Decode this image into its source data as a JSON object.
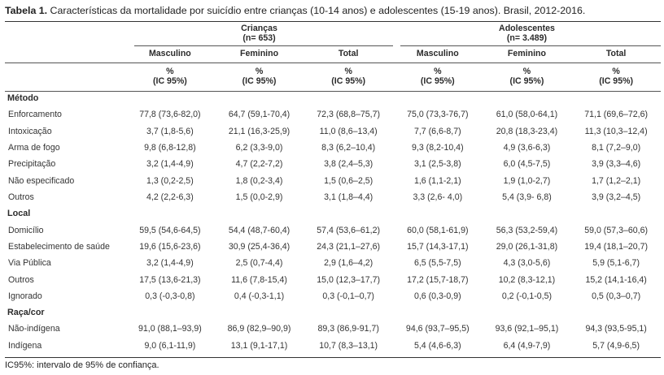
{
  "title": {
    "bold": "Tabela 1.",
    "rest": " Características da mortalidade por suicídio entre crianças (10-14 anos) e adolescentes (15-19 anos). Brasil, 2012-2016."
  },
  "groups": [
    {
      "name": "Crianças",
      "n": "(n= 653)"
    },
    {
      "name": "Adolescentes",
      "n": "(n= 3.489)"
    }
  ],
  "sex_headers": [
    "Masculino",
    "Feminino",
    "Total",
    "Masculino",
    "Feminino",
    "Total"
  ],
  "unit_line1": "%",
  "unit_line2": "(IC 95%)",
  "sections": [
    {
      "name": "Método",
      "rows": [
        {
          "label": "Enforcamento",
          "values": [
            "77,8 (73,6-82,0)",
            "64,7 (59,1-70,4)",
            "72,3 (68,8–75,7)",
            "75,0 (73,3-76,7)",
            "61,0 (58,0-64,1)",
            "71,1 (69,6–72,6)"
          ]
        },
        {
          "label": "Intoxicação",
          "values": [
            "3,7 (1,8-5,6)",
            "21,1 (16,3-25,9)",
            "11,0 (8,6–13,4)",
            "7,7 (6,6-8,7)",
            "20,8 (18,3-23,4)",
            "11,3 (10,3–12,4)"
          ]
        },
        {
          "label": "Arma de fogo",
          "values": [
            "9,8 (6,8-12,8)",
            "6,2 (3,3-9,0)",
            "8,3 (6,2–10,4)",
            "9,3 (8,2-10,4)",
            "4,9 (3,6-6,3)",
            "8,1 (7,2–9,0)"
          ]
        },
        {
          "label": "Precipitação",
          "values": [
            "3,2 (1,4-4,9)",
            "4,7 (2,2-7,2)",
            "3,8 (2,4–5,3)",
            "3,1 (2,5-3,8)",
            "6,0 (4,5-7,5)",
            "3,9 (3,3–4,6)"
          ]
        },
        {
          "label": "Não especificado",
          "values": [
            "1,3 (0,2-2,5)",
            "1,8 (0,2-3,4)",
            "1,5 (0,6–2,5)",
            "1,6 (1,1-2,1)",
            "1,9 (1,0-2,7)",
            "1,7 (1,2–2,1)"
          ]
        },
        {
          "label": "Outros",
          "values": [
            "4,2 (2,2-6,3)",
            "1,5 (0,0-2,9)",
            "3,1 (1,8–4,4)",
            "3,3 (2,6- 4,0)",
            "5,4 (3,9- 6,8)",
            "3,9 (3,2–4,5)"
          ]
        }
      ]
    },
    {
      "name": "Local",
      "rows": [
        {
          "label": "Domicílio",
          "values": [
            "59,5 (54,6-64,5)",
            "54,4 (48,7-60,4)",
            "57,4 (53,6–61,2)",
            "60,0 (58,1-61,9)",
            "56,3 (53,2-59,4)",
            "59,0 (57,3–60,6)"
          ]
        },
        {
          "label": "Estabelecimento de saúde",
          "values": [
            "19,6 (15,6-23,6)",
            "30,9 (25,4-36,4)",
            "24,3 (21,1–27,6)",
            "15,7 (14,3-17,1)",
            "29,0 (26,1-31,8)",
            "19,4 (18,1–20,7)"
          ]
        },
        {
          "label": "Via Pública",
          "values": [
            "3,2 (1,4-4,9)",
            "2,5 (0,7-4,4)",
            "2,9 (1,6–4,2)",
            "6,5 (5,5-7,5)",
            "4,3 (3,0-5,6)",
            "5,9 (5,1-6,7)"
          ]
        },
        {
          "label": "Outros",
          "values": [
            "17,5 (13,6-21,3)",
            "11,6 (7,8-15,4)",
            "15,0 (12,3–17,7)",
            "17,2 (15,7-18,7)",
            "10,2 (8,3-12,1)",
            "15,2 (14,1-16,4)"
          ]
        },
        {
          "label": "Ignorado",
          "values": [
            "0,3 (-0,3-0,8)",
            "0,4 (-0,3-1,1)",
            "0,3 (-0,1–0,7)",
            "0,6 (0,3-0,9)",
            "0,2 (-0,1-0,5)",
            "0,5 (0,3–0,7)"
          ]
        }
      ]
    },
    {
      "name": "Raça/cor",
      "rows": [
        {
          "label": "Não-indígena",
          "values": [
            "91,0 (88,1–93,9)",
            "86,9 (82,9–90,9)",
            "89,3 (86,9-91,7)",
            "94,6 (93,7–95,5)",
            "93,6 (92,1–95,1)",
            "94,3 (93,5-95,1)"
          ]
        },
        {
          "label": "Indígena",
          "values": [
            "9,0 (6,1-11,9)",
            "13,1 (9,1-17,1)",
            "10,7 (8,3–13,1)",
            "5,4 (4,6-6,3)",
            "6,4 (4,9-7,9)",
            "5,7 (4,9-6,5)"
          ]
        }
      ]
    }
  ],
  "footnote": "IC95%: intervalo de 95% de confiança."
}
